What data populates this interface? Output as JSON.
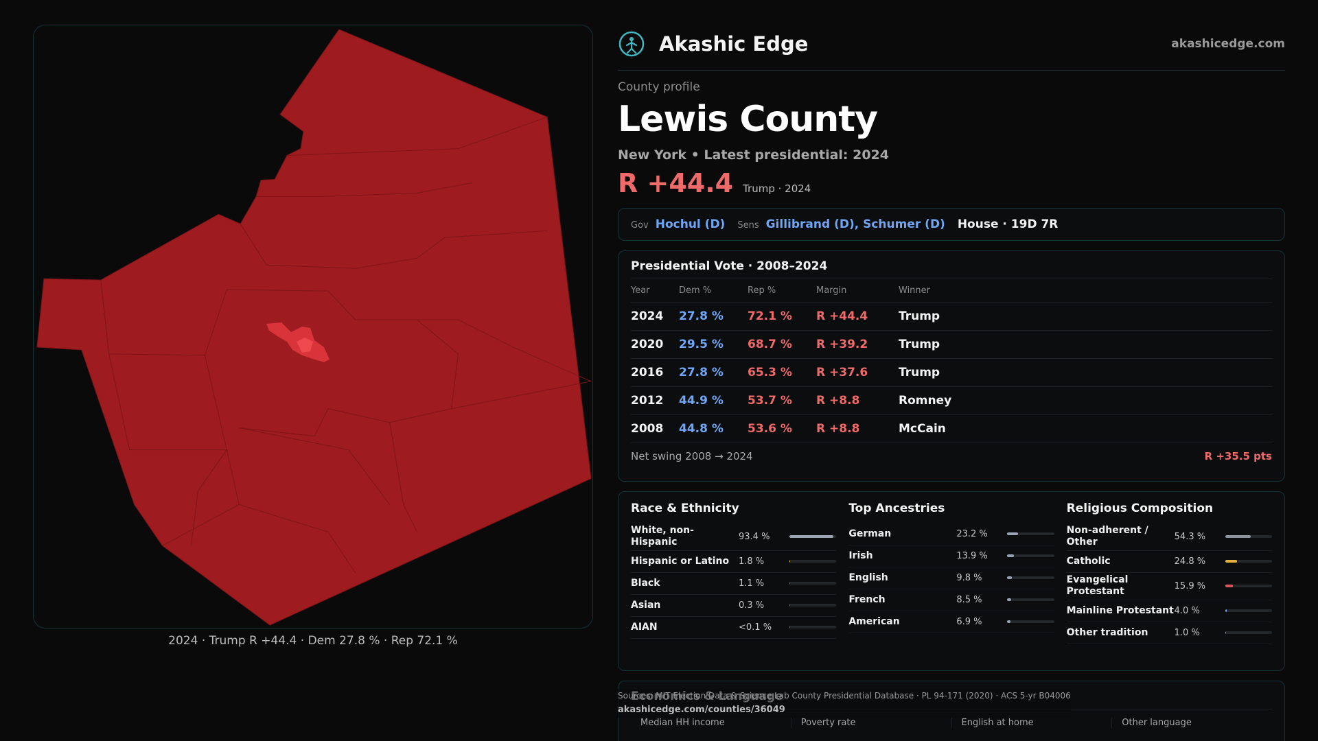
{
  "map": {
    "caption": "2024 · Trump R +44.4 · Dem 27.8 % · Rep 72.1 %",
    "colors": {
      "fill": "#9e1b1f",
      "border": "#7e1518",
      "urban_fill": "#d9343a",
      "urban_core": "#ef4b4f"
    }
  },
  "brand": {
    "name": "Akashic Edge",
    "url": "akashicedge.com"
  },
  "header": {
    "eyebrow": "County profile",
    "title": "Lewis County",
    "subline": "New York • Latest presidential: 2024",
    "margin": "R +44.4",
    "margin_note": "Trump · 2024"
  },
  "officials": {
    "gov_label": "Gov",
    "gov": "Hochul (D)",
    "sens_label": "Sens",
    "sens": "Gillibrand (D), Schumer (D)",
    "house": "House · 19D 7R"
  },
  "presidential": {
    "title": "Presidential Vote · 2008–2024",
    "headers": {
      "year": "Year",
      "dem": "Dem %",
      "rep": "Rep %",
      "margin": "Margin",
      "winner": "Winner"
    },
    "rows": [
      {
        "year": "2024",
        "dem": "27.8 %",
        "rep": "72.1 %",
        "margin": "R +44.4",
        "winner": "Trump"
      },
      {
        "year": "2020",
        "dem": "29.5 %",
        "rep": "68.7 %",
        "margin": "R +39.2",
        "winner": "Trump"
      },
      {
        "year": "2016",
        "dem": "27.8 %",
        "rep": "65.3 %",
        "margin": "R +37.6",
        "winner": "Trump"
      },
      {
        "year": "2012",
        "dem": "44.9 %",
        "rep": "53.7 %",
        "margin": "R +8.8",
        "winner": "Romney"
      },
      {
        "year": "2008",
        "dem": "44.8 %",
        "rep": "53.6 %",
        "margin": "R +8.8",
        "winner": "McCain"
      }
    ],
    "swing_label": "Net swing 2008 → 2024",
    "swing_value": "R +35.5 pts"
  },
  "race": {
    "title": "Race & Ethnicity",
    "items": [
      {
        "name": "White, non-Hispanic",
        "pct": "93.4 %",
        "frac": 0.934,
        "color": "#9aa4b2"
      },
      {
        "name": "Hispanic or Latino",
        "pct": "1.8 %",
        "frac": 0.018,
        "color": "#e6b13a"
      },
      {
        "name": "Black",
        "pct": "1.1 %",
        "frac": 0.011,
        "color": "#6c6c6c"
      },
      {
        "name": "Asian",
        "pct": "0.3 %",
        "frac": 0.003,
        "color": "#6c6c6c"
      },
      {
        "name": "AIAN",
        "pct": "<0.1 %",
        "frac": 0.001,
        "color": "#6c6c6c"
      }
    ]
  },
  "ancestry": {
    "title": "Top Ancestries",
    "items": [
      {
        "name": "German",
        "pct": "23.2 %",
        "frac": 0.232,
        "color": "#9aa4b2"
      },
      {
        "name": "Irish",
        "pct": "13.9 %",
        "frac": 0.139,
        "color": "#9aa4b2"
      },
      {
        "name": "English",
        "pct": "9.8 %",
        "frac": 0.098,
        "color": "#9aa4b2"
      },
      {
        "name": "French",
        "pct": "8.5 %",
        "frac": 0.085,
        "color": "#9aa4b2"
      },
      {
        "name": "American",
        "pct": "6.9 %",
        "frac": 0.069,
        "color": "#9aa4b2"
      }
    ]
  },
  "religion": {
    "title": "Religious Composition",
    "items": [
      {
        "name": "Non-adherent / Other",
        "pct": "54.3 %",
        "frac": 0.543,
        "color": "#8e949e"
      },
      {
        "name": "Catholic",
        "pct": "24.8 %",
        "frac": 0.248,
        "color": "#e6b13a"
      },
      {
        "name": "Evangelical Protestant",
        "pct": "15.9 %",
        "frac": 0.159,
        "color": "#e0525a"
      },
      {
        "name": "Mainline Protestant",
        "pct": "4.0 %",
        "frac": 0.04,
        "color": "#6fa6f5"
      },
      {
        "name": "Other tradition",
        "pct": "1.0 %",
        "frac": 0.01,
        "color": "#8e949e"
      }
    ]
  },
  "economics": {
    "title": "Economics & Language",
    "cells": [
      "Median HH income",
      "Poverty rate",
      "English at home",
      "Other language"
    ]
  },
  "source": {
    "line": "Sources: MIT Election Data & Science Lab County Presidential Database · PL 94-171 (2020) · ACS 5-yr B04006",
    "url": "akashicedge.com/counties/36049"
  }
}
